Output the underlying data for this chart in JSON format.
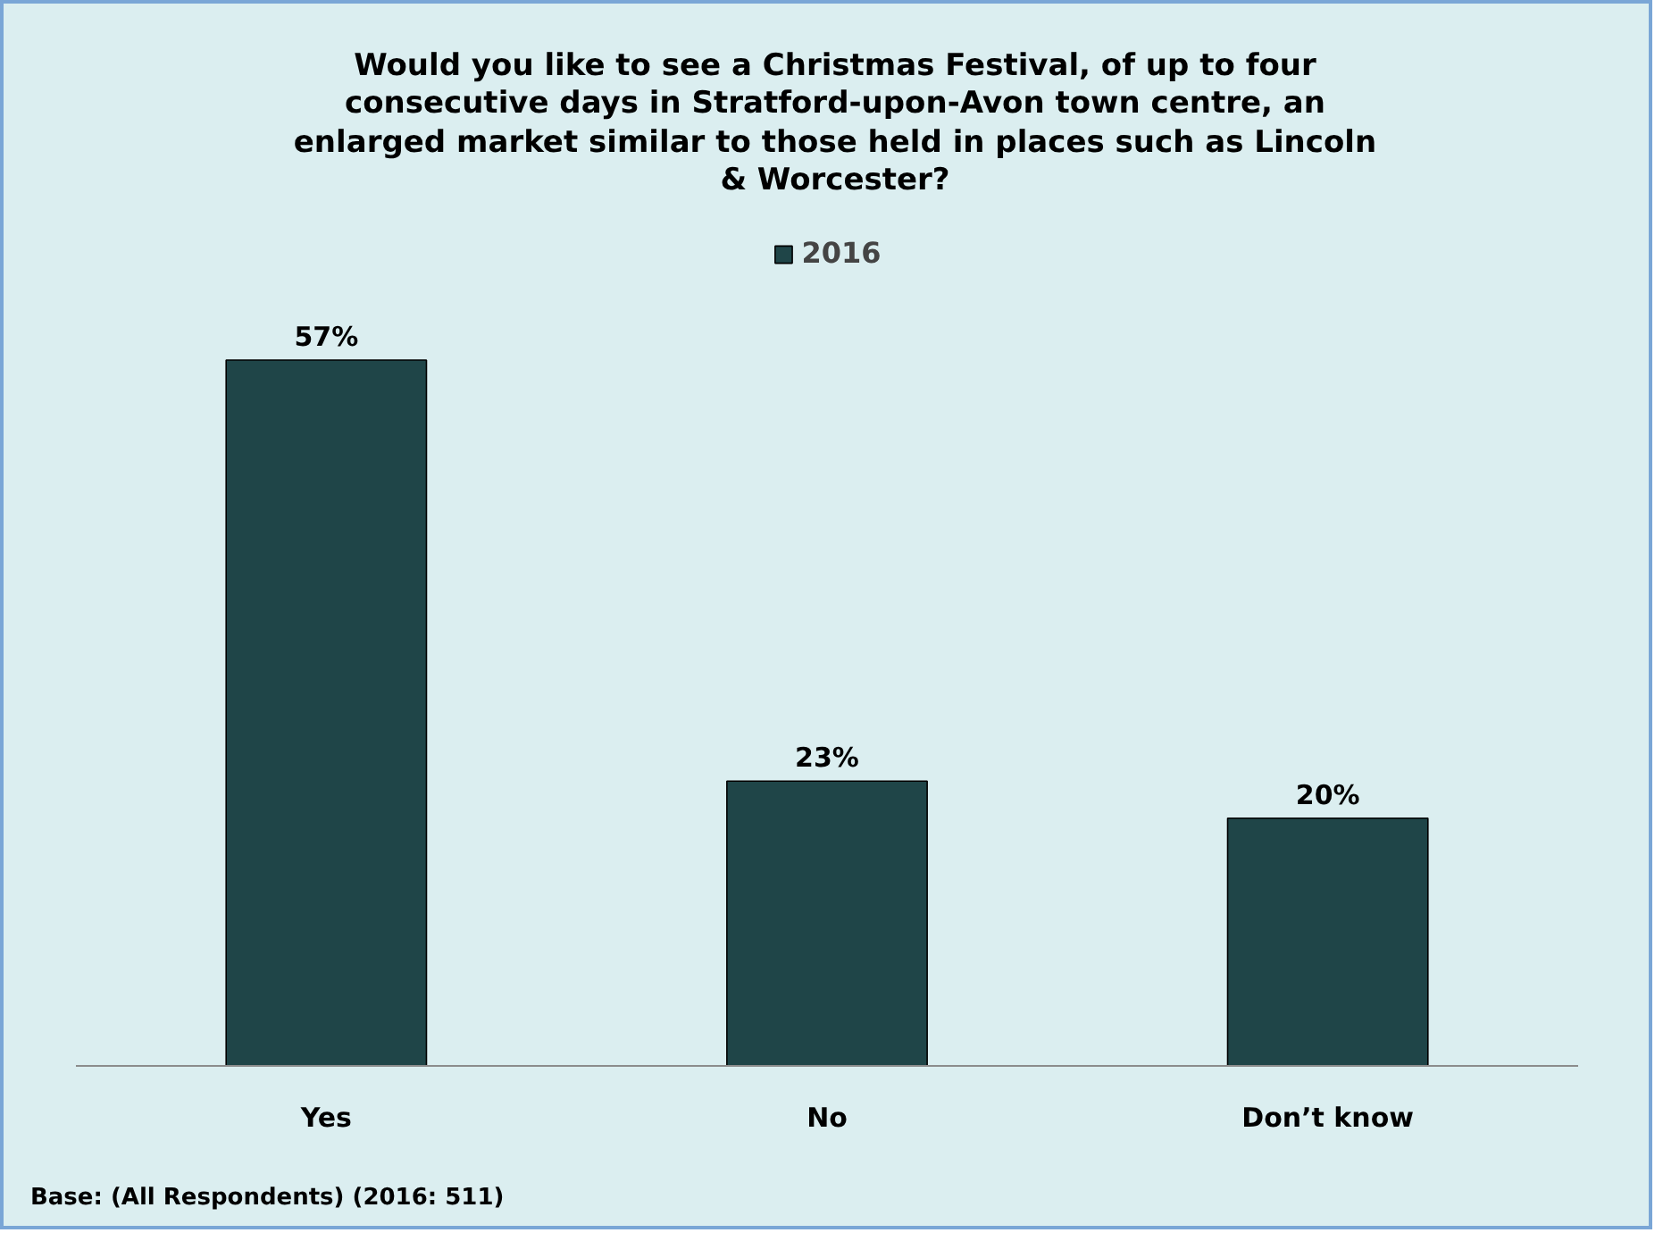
{
  "chart_data": {
    "type": "bar",
    "title": "Would you like to see a Christmas Festival, of up to four consecutive days in Stratford-upon-Avon town centre, an enlarged market similar to those held in places such as Lincoln & Worcester?",
    "categories": [
      "Yes",
      "No",
      "Don’t know"
    ],
    "series": [
      {
        "name": "2016",
        "color": "#1f4548",
        "values": [
          57,
          23,
          20
        ],
        "value_labels": [
          "57%",
          "23%",
          "20%"
        ]
      }
    ],
    "legend": "top",
    "grid": false,
    "annotations": [
      "Base: (All Respondents) (2016: 511)"
    ]
  }
}
